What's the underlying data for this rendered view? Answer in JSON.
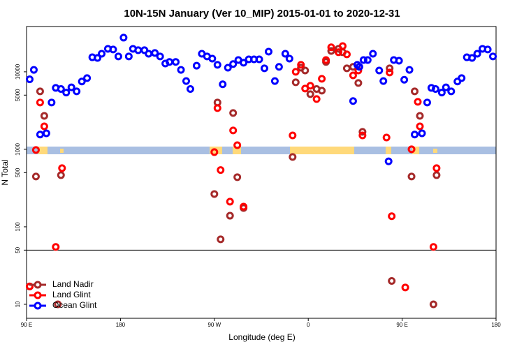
{
  "chart_data": {
    "type": "scatter",
    "title": "10N-15N January (Ver 10_MIP)   2015-01-01 to 2020-12-31",
    "x_label": "Longitude (deg E)",
    "y_label": "N Total",
    "log_y": true,
    "legend": "lower-left",
    "reference_line": 50,
    "xlim": [
      90,
      540
    ],
    "xticks": [
      {
        "value": 90,
        "label": "90 E"
      },
      {
        "value": 180,
        "label": "180"
      },
      {
        "value": 270,
        "label": "90 W"
      },
      {
        "value": 360,
        "label": "0"
      },
      {
        "value": 450,
        "label": "90 E"
      },
      {
        "value": 540,
        "label": "180"
      }
    ],
    "ylim": [
      6.6,
      38400
    ],
    "yticks": [
      10,
      50,
      100,
      500,
      1000,
      5000,
      10000
    ],
    "series": [
      {
        "name": "Land Nadir",
        "color": "#a52a2a",
        "x": [
          103,
          107,
          99,
          123,
          120,
          270,
          273,
          276,
          285,
          288,
          292,
          298,
          345,
          348,
          353,
          357,
          362,
          368,
          373,
          377,
          382,
          389,
          393,
          397,
          403,
          408,
          412,
          438,
          440,
          462,
          467,
          459,
          483,
          480,
          93
        ],
        "values": [
          5600,
          2700,
          446,
          464,
          10,
          265,
          4020,
          69,
          139,
          2940,
          437,
          175,
          796,
          7320,
          11300,
          10400,
          5150,
          6000,
          5710,
          13400,
          18600,
          19800,
          17900,
          11100,
          11600,
          7180,
          1680,
          11100,
          20,
          5600,
          2700,
          446,
          464,
          10,
          17
        ]
      },
      {
        "name": "Land Glint",
        "color": "#ff0000",
        "x": [
          99,
          103,
          107,
          118,
          124,
          270,
          273,
          276,
          285,
          298,
          288,
          292,
          345,
          348,
          353,
          357,
          362,
          368,
          373,
          377,
          382,
          389,
          393,
          397,
          403,
          408,
          412,
          435,
          438,
          440,
          465,
          467,
          459,
          483,
          480,
          93,
          453
        ],
        "values": [
          980,
          4020,
          1980,
          55,
          571,
          920,
          3400,
          540,
          211,
          182,
          1750,
          1130,
          1510,
          10000,
          12300,
          6080,
          6600,
          4450,
          8130,
          14200,
          20700,
          17900,
          21500,
          16800,
          9000,
          10400,
          1510,
          1420,
          9800,
          137,
          4100,
          1980,
          1000,
          571,
          55,
          17,
          16.5
        ]
      },
      {
        "name": "Ocean Glint",
        "color": "#0000ff",
        "x": [
          93,
          97,
          103,
          109,
          114,
          118,
          123,
          128,
          133,
          138,
          143,
          148,
          153,
          158,
          162,
          168,
          173,
          178,
          183,
          188,
          192,
          197,
          203,
          207,
          213,
          218,
          223,
          227,
          233,
          238,
          243,
          247,
          253,
          258,
          263,
          268,
          273,
          278,
          283,
          288,
          293,
          298,
          303,
          308,
          313,
          318,
          322,
          328,
          332,
          338,
          342,
          403,
          407,
          409,
          413,
          417,
          422,
          428,
          432,
          437,
          442,
          447,
          452,
          457,
          462,
          469,
          474,
          478,
          482,
          488,
          492,
          497,
          503,
          507,
          512,
          517,
          522,
          527,
          532,
          537
        ],
        "values": [
          8000,
          10600,
          1550,
          1610,
          4020,
          6200,
          6000,
          5400,
          6300,
          5600,
          7500,
          8300,
          15400,
          15100,
          17100,
          19800,
          19400,
          15800,
          27600,
          15800,
          19800,
          19000,
          19000,
          17100,
          17500,
          15800,
          12800,
          13400,
          13400,
          10600,
          7600,
          6000,
          12000,
          17100,
          15800,
          14800,
          12300,
          6900,
          11300,
          12600,
          14200,
          13100,
          14500,
          14500,
          14500,
          11100,
          18200,
          7600,
          11600,
          17100,
          14800,
          4200,
          12300,
          11600,
          14200,
          14200,
          17100,
          10400,
          7600,
          700,
          14200,
          13900,
          7900,
          10600,
          1550,
          1610,
          4020,
          6200,
          6000,
          5400,
          6300,
          5600,
          7500,
          8300,
          15400,
          15100,
          17100,
          19800,
          19400,
          15800
        ]
      }
    ]
  }
}
